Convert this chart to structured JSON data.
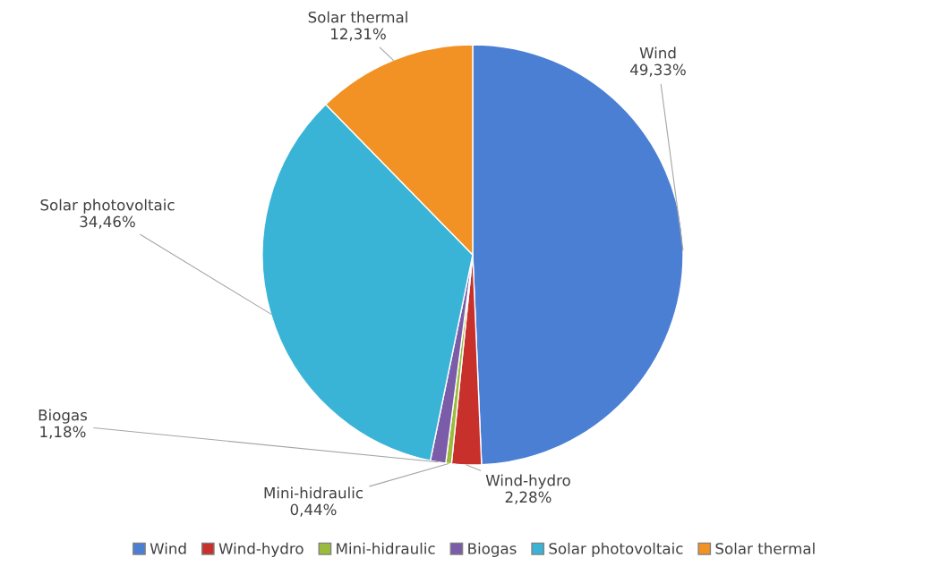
{
  "chart_data": {
    "type": "pie",
    "categories": [
      "Wind",
      "Wind-hydro",
      "Mini-hidraulic",
      "Biogas",
      "Solar photovoltaic",
      "Solar thermal"
    ],
    "values": [
      49.33,
      2.28,
      0.44,
      1.18,
      34.46,
      12.31
    ],
    "value_labels": [
      "49,33%",
      "2,28%",
      "0,44%",
      "1,18%",
      "34,46%",
      "12,31%"
    ],
    "colors": [
      "#4a7fd4",
      "#c8302c",
      "#9bbb3c",
      "#7a5ca8",
      "#3ab4d6",
      "#f29124"
    ],
    "legend": "bottom"
  }
}
